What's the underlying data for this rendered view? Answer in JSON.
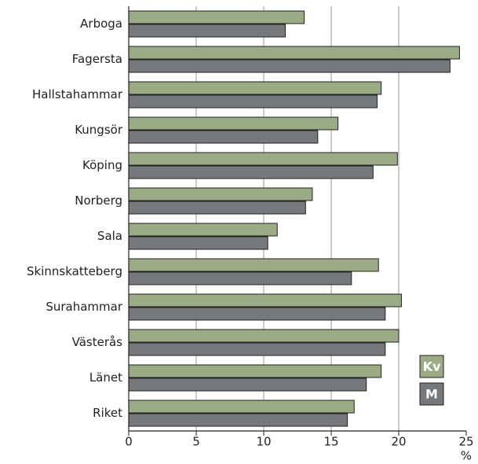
{
  "chart_data": {
    "type": "barh",
    "categories": [
      "Arboga",
      "Fagersta",
      "Hallstahammar",
      "Kungsör",
      "Köping",
      "Norberg",
      "Sala",
      "Skinnskatteberg",
      "Surahammar",
      "Västerås",
      "Länet",
      "Riket"
    ],
    "series": [
      {
        "name": "Kv",
        "color": "#9aab85",
        "values": [
          13.0,
          24.5,
          18.7,
          15.5,
          19.9,
          13.6,
          11.0,
          18.5,
          20.2,
          20.0,
          18.7,
          16.7
        ]
      },
      {
        "name": "M",
        "color": "#77787c",
        "values": [
          11.6,
          23.8,
          18.4,
          14.0,
          18.1,
          13.1,
          10.3,
          16.5,
          19.0,
          19.0,
          17.6,
          16.2
        ]
      }
    ],
    "xlim": [
      0,
      25
    ],
    "xticks": [
      0,
      5,
      10,
      15,
      20,
      25
    ],
    "x_label": "%",
    "grid": true
  }
}
